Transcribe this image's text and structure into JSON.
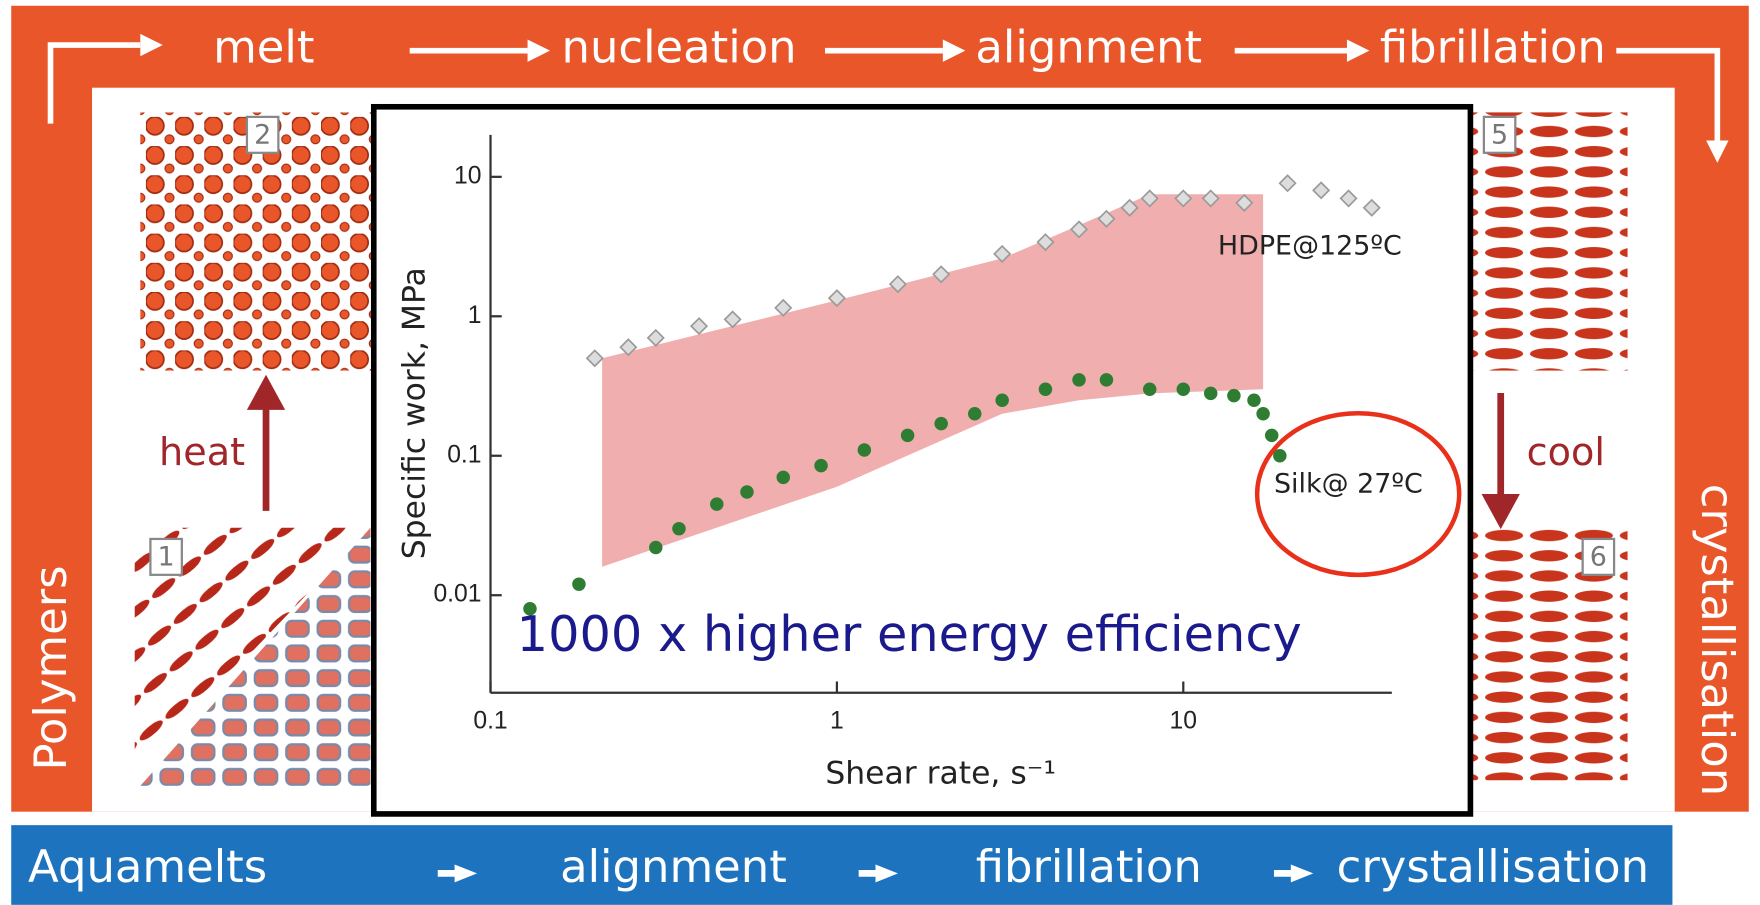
{
  "diagram": {
    "top_steps": [
      "melt",
      "nucleation",
      "alignment",
      "fibrillation"
    ],
    "left_label": "Polymers",
    "right_label": "crystallisation",
    "heat": "heat",
    "cool": "cool",
    "stage_numbers": [
      "1",
      "2",
      "5",
      "6"
    ],
    "bottom_steps": [
      "Aquamelts",
      "alignment",
      "fibrillation",
      "crystallisation"
    ],
    "highlight": "1000 x higher energy efficiency"
  },
  "chart_data": {
    "type": "scatter",
    "xlabel": "Shear rate, s⁻¹",
    "ylabel": "Specific work, MPa",
    "log_x": true,
    "log_y": true,
    "xlim": [
      0.1,
      40
    ],
    "xticks": [
      0.1,
      1,
      10
    ],
    "ylim": [
      0.002,
      20
    ],
    "yticks": [
      0.01,
      0.1,
      1,
      10
    ],
    "shaded_region": {
      "color": "#f0a5a5",
      "x": [
        0.21,
        1,
        3,
        5,
        8,
        17
      ],
      "upper": [
        0.5,
        1.3,
        2.6,
        4.5,
        7.5,
        7.5
      ],
      "lower": [
        0.016,
        0.06,
        0.2,
        0.25,
        0.28,
        0.3
      ]
    },
    "series": [
      {
        "name": "HDPE@125ºC",
        "color": "#9a9a9a",
        "x": [
          0.2,
          0.25,
          0.3,
          0.4,
          0.5,
          0.7,
          1,
          1.5,
          2,
          3,
          4,
          5,
          6,
          7,
          8,
          10,
          12,
          15,
          20,
          25,
          30,
          35
        ],
        "values": [
          0.5,
          0.6,
          0.7,
          0.85,
          0.95,
          1.15,
          1.35,
          1.7,
          2,
          2.8,
          3.4,
          4.2,
          5,
          6,
          7,
          7,
          7,
          6.5,
          9,
          8,
          7,
          6
        ]
      },
      {
        "name": "Silk@ 27ºC",
        "color": "#2e7d32",
        "x": [
          0.13,
          0.18,
          0.3,
          0.35,
          0.45,
          0.55,
          0.7,
          0.9,
          1.2,
          1.6,
          2,
          2.5,
          3,
          4,
          5,
          6,
          8,
          10,
          12,
          14,
          16,
          17,
          18,
          19
        ],
        "values": [
          0.008,
          0.012,
          0.022,
          0.03,
          0.045,
          0.055,
          0.07,
          0.085,
          0.11,
          0.14,
          0.17,
          0.2,
          0.25,
          0.3,
          0.35,
          0.35,
          0.3,
          0.3,
          0.28,
          0.27,
          0.25,
          0.2,
          0.14,
          0.1
        ]
      }
    ]
  }
}
